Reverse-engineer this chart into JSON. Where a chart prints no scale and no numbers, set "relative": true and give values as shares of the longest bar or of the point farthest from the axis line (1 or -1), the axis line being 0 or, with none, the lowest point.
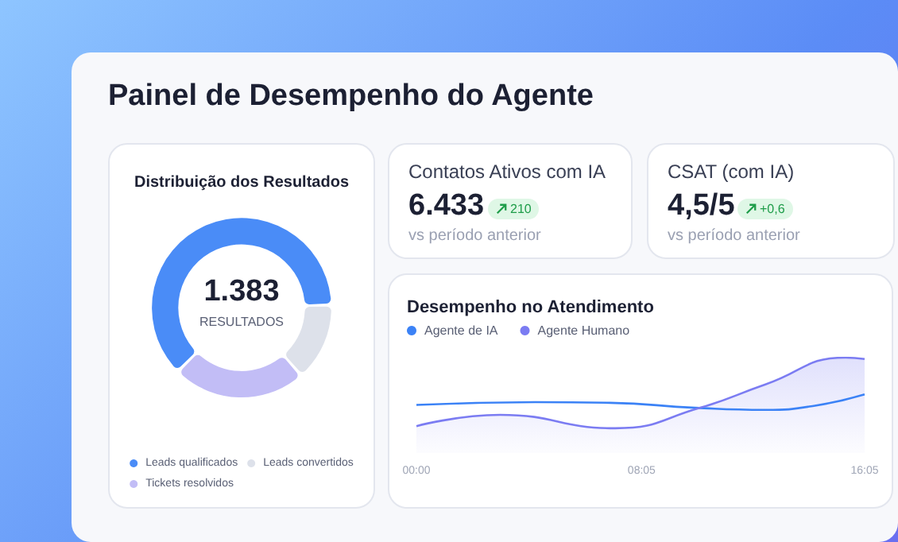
{
  "chart_data": [
    {
      "type": "other",
      "title": "Painel de Desempenho do Agente"
    },
    {
      "type": "donut",
      "title": "Distribuição dos Resultados",
      "categories": [
        "Leads qualificados",
        "Leads convertidos",
        "Tickets resolvidos"
      ],
      "values": [
        62,
        14,
        24
      ],
      "colors": [
        "#4a8cf7",
        "#dde1ea",
        "#c2bdf6"
      ],
      "annotations": [
        "1.383",
        "RESULTADOS"
      ],
      "legend": "bottom"
    },
    {
      "type": "other",
      "title": "Contatos Ativos com IA",
      "subtitle": "vs período anterior",
      "annotations": [
        "6.433",
        "210"
      ]
    },
    {
      "type": "other",
      "title": "CSAT (com IA)",
      "subtitle": "vs período anterior",
      "annotations": [
        "4,5/5",
        "+0,6"
      ]
    },
    {
      "type": "line",
      "title": "Desempenho no Atendimento",
      "relative": true,
      "legend": "top left",
      "tick_labels": "x",
      "marker": "none",
      "xlim": [
        0,
        16.08
      ],
      "xticks": [
        {
          "value": 0,
          "label": "00:00"
        },
        {
          "value": 8.08,
          "label": "08:05"
        },
        {
          "value": 16.08,
          "label": "16:05"
        }
      ],
      "series": [
        {
          "name": "Agente de IA",
          "type": "line",
          "color": "#3b82f6",
          "x": [
            0,
            4.26,
            6.95,
            10.0,
            12.52,
            14.3,
            16.08
          ],
          "values": [
            0.33,
            0.37,
            0.36,
            0.29,
            0.26,
            0.32,
            0.48
          ]
        },
        {
          "name": "Agente Humano",
          "type": "area",
          "color": "#7b7cf2",
          "x": [
            0,
            3.0,
            7.13,
            10.18,
            12.52,
            15.4,
            16.08
          ],
          "values": [
            0.03,
            0.19,
            0,
            0.29,
            0.62,
            1,
            0.98
          ]
        }
      ]
    }
  ]
}
